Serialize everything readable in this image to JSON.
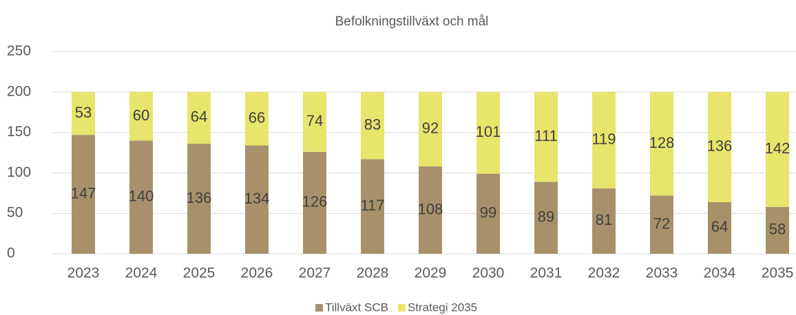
{
  "chart_data": {
    "type": "stacked_bar",
    "title": "Befolkningstillväxt och mål",
    "categories": [
      "2023",
      "2024",
      "2025",
      "2026",
      "2027",
      "2028",
      "2029",
      "2030",
      "2031",
      "2032",
      "2033",
      "2034",
      "2035"
    ],
    "series": [
      {
        "name": "Tillväxt SCB",
        "color": "#a8916a",
        "values": [
          147,
          140,
          136,
          134,
          126,
          117,
          108,
          99,
          89,
          81,
          72,
          64,
          58
        ]
      },
      {
        "name": "Strategi 2035",
        "color": "#e7e56b",
        "values": [
          53,
          60,
          64,
          66,
          74,
          83,
          92,
          101,
          111,
          119,
          128,
          136,
          142
        ]
      }
    ],
    "ylim": [
      0,
      250
    ],
    "yticks": [
      0,
      50,
      100,
      150,
      200,
      250
    ],
    "grid": true,
    "legend": "bottom"
  }
}
